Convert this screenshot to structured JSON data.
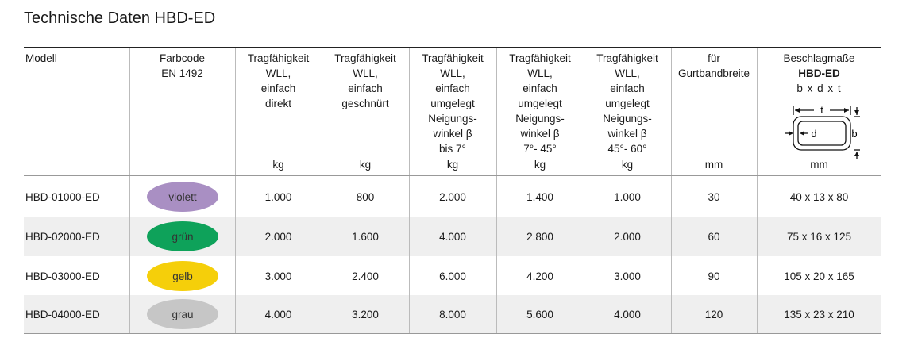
{
  "title": "Technische Daten HBD-ED",
  "table": {
    "headers": [
      {
        "lines": [
          "Modell"
        ]
      },
      {
        "lines": [
          "Farbcode",
          "EN 1492"
        ]
      },
      {
        "lines": [
          "Tragfähigkeit",
          "WLL,",
          "einfach",
          "direkt"
        ],
        "unit": "kg"
      },
      {
        "lines": [
          "Tragfähigkeit",
          "WLL,",
          "einfach",
          "geschnürt"
        ],
        "unit": "kg"
      },
      {
        "lines": [
          "Tragfähigkeit",
          "WLL,",
          "einfach",
          "umgelegt",
          "Neigungs-",
          "winkel β",
          "bis 7°"
        ],
        "unit": "kg"
      },
      {
        "lines": [
          "Tragfähigkeit",
          "WLL,",
          "einfach",
          "umgelegt",
          "Neigungs-",
          "winkel β",
          "7°- 45°"
        ],
        "unit": "kg"
      },
      {
        "lines": [
          "Tragfähigkeit",
          "WLL,",
          "einfach",
          "umgelegt",
          "Neigungs-",
          "winkel β",
          "45°- 60°"
        ],
        "unit": "kg"
      },
      {
        "lines": [
          "für",
          "Gurtbandbreite"
        ],
        "unit": "mm"
      },
      {
        "lines": [
          "Beschlagmaße",
          "HBD-ED",
          "b x d x t"
        ],
        "unit": "mm",
        "diagram": {
          "t": "t",
          "d": "d",
          "b": "b"
        }
      }
    ],
    "rows": [
      {
        "model": "HBD-01000-ED",
        "color_name": "violett",
        "color": "#a98fc3",
        "values": [
          "1.000",
          "800",
          "2.000",
          "1.400",
          "1.000",
          "30",
          "40 x 13 x 80"
        ]
      },
      {
        "model": "HBD-02000-ED",
        "color_name": "grün",
        "color": "#0ea25a",
        "values": [
          "2.000",
          "1.600",
          "4.000",
          "2.800",
          "2.000",
          "60",
          "75 x 16 x 125"
        ]
      },
      {
        "model": "HBD-03000-ED",
        "color_name": "gelb",
        "color": "#f5cf0a",
        "values": [
          "3.000",
          "2.400",
          "6.000",
          "4.200",
          "3.000",
          "90",
          "105 x 20 x 165"
        ]
      },
      {
        "model": "HBD-04000-ED",
        "color_name": "grau",
        "color": "#c6c6c6",
        "values": [
          "4.000",
          "3.200",
          "8.000",
          "5.600",
          "4.000",
          "120",
          "135 x 23 x 210"
        ]
      }
    ]
  }
}
